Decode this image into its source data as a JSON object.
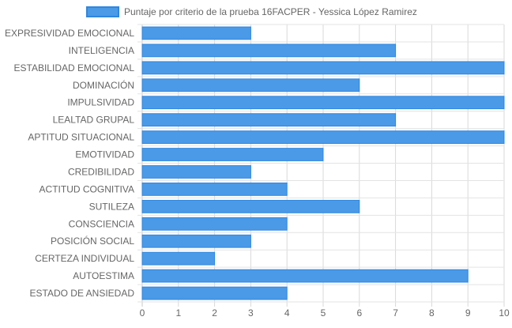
{
  "chart_data": {
    "type": "bar",
    "orientation": "horizontal",
    "title": "",
    "xlabel": "",
    "ylabel": "",
    "xlim": [
      0,
      10
    ],
    "x_ticks": [
      0,
      1,
      2,
      3,
      4,
      5,
      6,
      7,
      8,
      9,
      10
    ],
    "grid": true,
    "legend_position": "top",
    "bar_color": "#4a9ae8",
    "bar_border_color": "#2f86e0",
    "categories": [
      "EXPRESIVIDAD EMOCIONAL",
      "INTELIGENCIA",
      "ESTABILIDAD EMOCIONAL",
      "DOMINACIÓN",
      "IMPULSIVIDAD",
      "LEALTAD GRUPAL",
      "APTITUD SITUACIONAL",
      "EMOTIVIDAD",
      "CREDIBILIDAD",
      "ACTITUD COGNITIVA",
      "SUTILEZA",
      "CONSCIENCIA",
      "POSICIÓN SOCIAL",
      "CERTEZA INDIVIDUAL",
      "AUTOESTIMA",
      "ESTADO DE ANSIEDAD"
    ],
    "series": [
      {
        "name": "Puntaje por criterio de la prueba 16FACPER - Yessica López Ramirez",
        "values": [
          3,
          7,
          10,
          6,
          10,
          7,
          10,
          5,
          3,
          4,
          6,
          4,
          3,
          2,
          9,
          4
        ]
      }
    ]
  }
}
